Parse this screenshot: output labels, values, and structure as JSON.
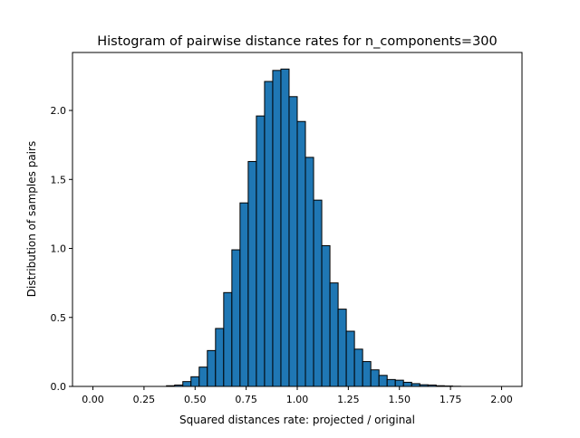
{
  "chart_data": {
    "type": "bar",
    "title": "Histogram of pairwise distance rates for n_components=300",
    "xlabel": "Squared distances rate: projected / original",
    "ylabel": "Distribution of samples pairs",
    "xlim": [
      -0.1,
      2.1
    ],
    "ylim": [
      0,
      2.42
    ],
    "xticks": [
      "0.00",
      "0.25",
      "0.50",
      "0.75",
      "1.00",
      "1.25",
      "1.50",
      "1.75",
      "2.00"
    ],
    "yticks": [
      "0.0",
      "0.5",
      "1.0",
      "1.5",
      "2.0"
    ],
    "grid": false,
    "bar_color": "#1f77b4",
    "edge_color": "#000000",
    "bin_width": 0.04,
    "bin_starts": [
      0.0,
      0.04,
      0.08,
      0.12,
      0.16,
      0.2,
      0.24,
      0.28,
      0.32,
      0.36,
      0.4,
      0.44,
      0.48,
      0.52,
      0.56,
      0.6,
      0.64,
      0.68,
      0.72,
      0.76,
      0.8,
      0.84,
      0.88,
      0.92,
      0.96,
      1.0,
      1.04,
      1.08,
      1.12,
      1.16,
      1.2,
      1.24,
      1.28,
      1.32,
      1.36,
      1.4,
      1.44,
      1.48,
      1.52,
      1.56,
      1.6,
      1.64,
      1.68,
      1.72,
      1.76,
      1.8,
      1.84,
      1.88,
      1.92,
      1.96
    ],
    "values": [
      0,
      0,
      0,
      0,
      0,
      0,
      0,
      0,
      0,
      0.005,
      0.01,
      0.035,
      0.07,
      0.14,
      0.26,
      0.42,
      0.68,
      0.99,
      1.33,
      1.63,
      1.96,
      2.21,
      2.29,
      2.3,
      2.1,
      1.92,
      1.66,
      1.35,
      1.02,
      0.75,
      0.56,
      0.4,
      0.27,
      0.18,
      0.12,
      0.08,
      0.05,
      0.045,
      0.03,
      0.02,
      0.012,
      0.01,
      0.005,
      0.003,
      0.001,
      0,
      0,
      0,
      0,
      0
    ]
  }
}
